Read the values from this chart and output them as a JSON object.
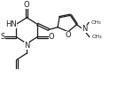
{
  "bg_color": "#ffffff",
  "line_color": "#1a1a1a",
  "lw": 0.9,
  "figsize": [
    1.41,
    0.97
  ],
  "dpi": 100,
  "xlim": [
    0.0,
    1.41
  ],
  "ylim": [
    0.0,
    0.97
  ]
}
